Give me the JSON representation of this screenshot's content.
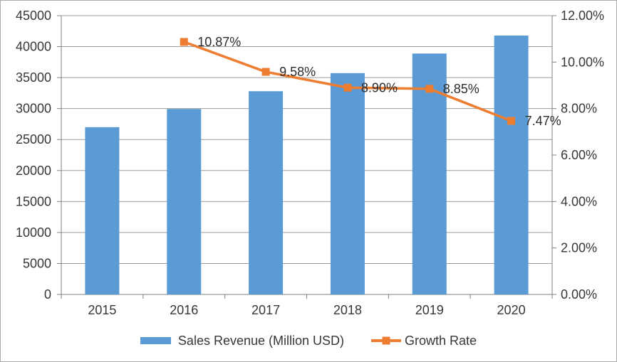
{
  "chart_data": {
    "type": "combo",
    "categories": [
      "2015",
      "2016",
      "2017",
      "2018",
      "2019",
      "2020"
    ],
    "series": [
      {
        "name": "Sales Revenue (Million USD)",
        "type": "bar",
        "y_axis": "left",
        "color": "#5B9BD5",
        "values": [
          27000,
          29935,
          32803,
          35722,
          38884,
          41788
        ]
      },
      {
        "name": "Growth Rate",
        "type": "line",
        "y_axis": "right",
        "color": "#ED7D31",
        "values": [
          null,
          10.87,
          9.58,
          8.9,
          8.85,
          7.47
        ],
        "point_labels": [
          "",
          "10.87%",
          "9.58%",
          "8.90%",
          "8.85%",
          "7.47%"
        ]
      }
    ],
    "left_axis": {
      "min": 0,
      "max": 45000,
      "step": 5000,
      "tick_labels": [
        "0",
        "5000",
        "10000",
        "15000",
        "20000",
        "25000",
        "30000",
        "35000",
        "40000",
        "45000"
      ]
    },
    "right_axis": {
      "min": 0,
      "max": 12,
      "step": 2,
      "tick_labels": [
        "0.00%",
        "2.00%",
        "4.00%",
        "6.00%",
        "8.00%",
        "10.00%",
        "12.00%"
      ]
    },
    "x_axis": {
      "tick_labels": [
        "2015",
        "2016",
        "2017",
        "2018",
        "2019",
        "2020"
      ]
    },
    "grid": true,
    "legend_position": "bottom"
  }
}
